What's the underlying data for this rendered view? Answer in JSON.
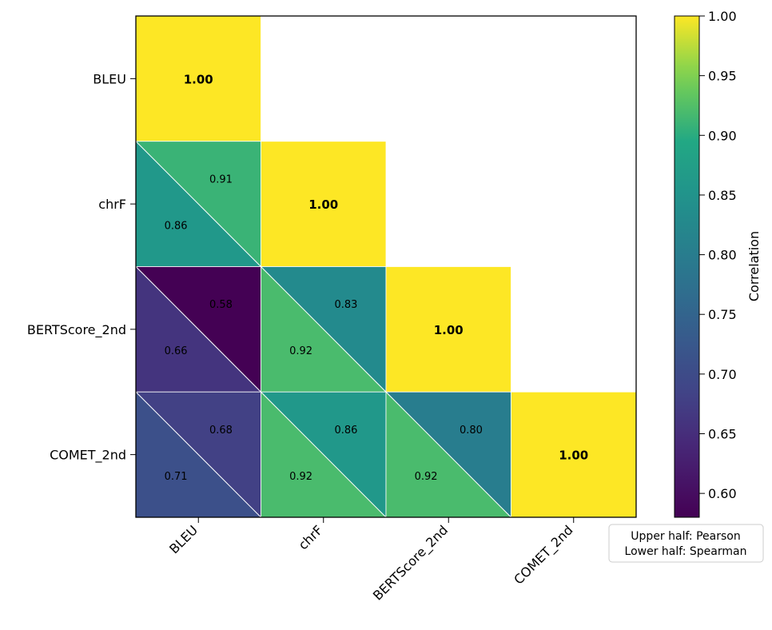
{
  "chart_data": {
    "type": "heatmap",
    "subtype": "lower-triangular split-cell correlation matrix",
    "labels": [
      "BLEU",
      "chrF",
      "BERTScore_2nd",
      "COMET_2nd"
    ],
    "pearson": [
      [
        1.0,
        null,
        null,
        null
      ],
      [
        0.91,
        1.0,
        null,
        null
      ],
      [
        0.58,
        0.83,
        1.0,
        null
      ],
      [
        0.68,
        0.86,
        0.8,
        1.0
      ]
    ],
    "spearman": [
      [
        1.0,
        null,
        null,
        null
      ],
      [
        0.86,
        1.0,
        null,
        null
      ],
      [
        0.66,
        0.92,
        1.0,
        null
      ],
      [
        0.71,
        0.92,
        0.92,
        1.0
      ]
    ],
    "diagonal_label": "1.00",
    "colormap": "viridis",
    "colorbar": {
      "label": "Correlation",
      "min": 0.58,
      "max": 1.0,
      "ticks": [
        "0.60",
        "0.65",
        "0.70",
        "0.75",
        "0.80",
        "0.85",
        "0.90",
        "0.95",
        "1.00"
      ]
    },
    "legend": {
      "position": "bottom-right",
      "lines": [
        "Upper half: Pearson",
        "Lower half: Spearman"
      ]
    }
  }
}
